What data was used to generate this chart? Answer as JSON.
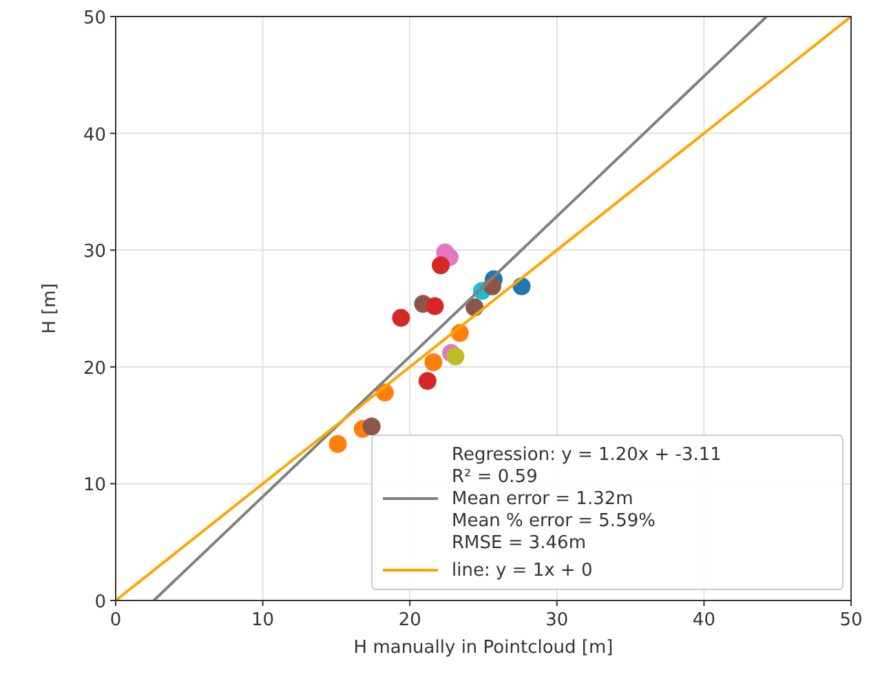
{
  "chart_data": {
    "type": "scatter",
    "xlabel": "H manually in Pointcloud [m]",
    "ylabel": "H [m]",
    "xlim": [
      0,
      50
    ],
    "ylim": [
      0,
      50
    ],
    "xticks": [
      0,
      10,
      20,
      30,
      40,
      50
    ],
    "yticks": [
      0,
      10,
      20,
      30,
      40,
      50
    ],
    "grid": true,
    "legend": "bottom right",
    "series": [
      {
        "marker": "circle",
        "x": [
          22.4,
          22.7,
          22.1,
          25.7,
          27.6,
          24.9,
          25.6,
          20.9,
          21.7,
          19.4,
          24.4,
          23.4,
          22.8,
          23.1,
          21.6,
          21.2,
          18.3,
          16.8,
          17.4,
          15.1
        ],
        "values": [
          29.8,
          29.4,
          28.7,
          27.5,
          26.9,
          26.5,
          26.9,
          25.4,
          25.2,
          24.2,
          25.1,
          22.9,
          21.2,
          20.9,
          20.4,
          18.8,
          17.8,
          14.7,
          14.9,
          13.4
        ],
        "colors": [
          "#e377c2",
          "#e377c2",
          "#d62728",
          "#1f77b4",
          "#1f77b4",
          "#17becf",
          "#8c564b",
          "#8c564b",
          "#d62728",
          "#d62728",
          "#8c564b",
          "#ff7f0e",
          "#e377c2",
          "#bcbd22",
          "#ff7f0e",
          "#d62728",
          "#ff7f0e",
          "#ff7f0e",
          "#8c564b",
          "#ff7f0e"
        ]
      },
      {
        "type": "line",
        "name": "Regression: y = 1.20x + -3.11\nR² = 0.59\nMean error = 1.32m\nMean % error = 5.59%\nRMSE = 3.46m",
        "color": "#808080",
        "x": [
          2.59,
          44.26
        ],
        "values": [
          0,
          50
        ]
      },
      {
        "type": "line",
        "name": "line: y = 1x + 0",
        "color": "#ffa500",
        "x": [
          0,
          50
        ],
        "values": [
          0,
          50
        ]
      }
    ]
  }
}
